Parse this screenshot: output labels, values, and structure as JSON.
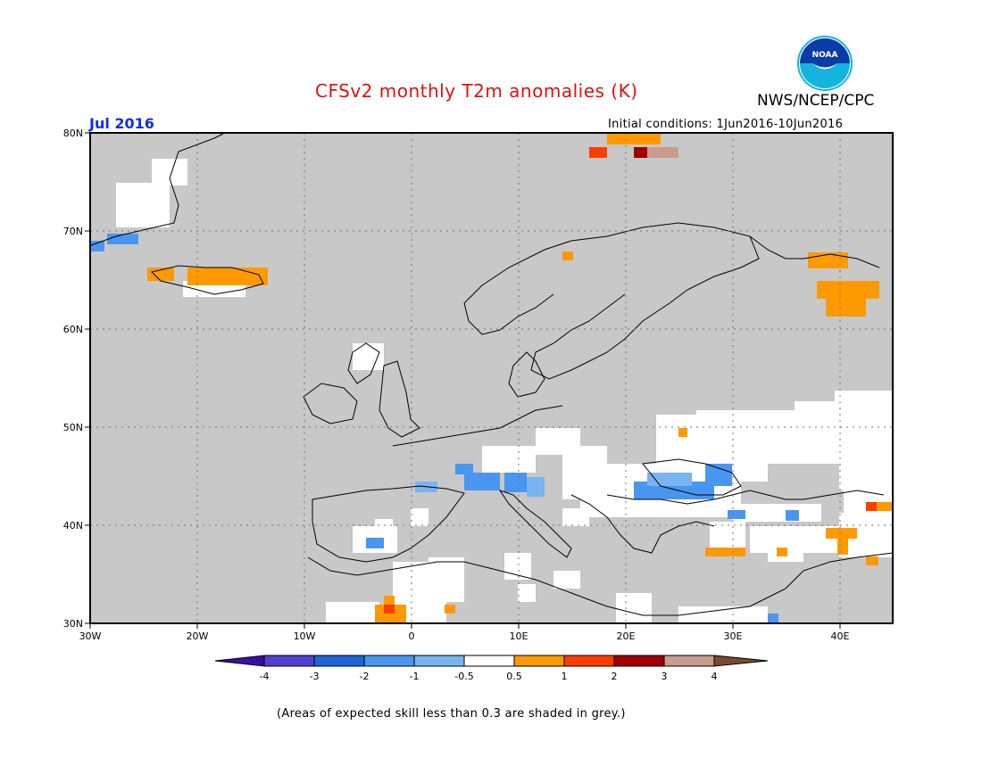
{
  "title": "CFSv2 monthly T2m anomalies (K)",
  "agency": "NWS/NCEP/CPC",
  "logo_text": "NOAA",
  "forecast_month": "Jul 2016",
  "initial_conditions": "Initial conditions: 1Jun2016-10Jun2016",
  "map": {
    "lat_labels": [
      "80N",
      "70N",
      "60N",
      "50N",
      "40N",
      "30N"
    ],
    "lon_labels": [
      "30W",
      "20W",
      "10W",
      "0",
      "10E",
      "20E",
      "30E",
      "40E"
    ],
    "grid": "dotted",
    "skill_mask_color": "#c8c8c8"
  },
  "colorbar": {
    "colors": [
      "#3a0fa0",
      "#5040d0",
      "#1f64d8",
      "#4896f0",
      "#78b4f0",
      "#ffffff",
      "#ff9900",
      "#ff3c00",
      "#a00000",
      "#c89b8c",
      "#7a4a32"
    ],
    "ticks": [
      "-4",
      "-3",
      "-2",
      "-1",
      "-0.5",
      "0.5",
      "1",
      "2",
      "3",
      "4"
    ]
  },
  "footnote": "(Areas of expected skill less than 0.3 are shaded in grey.)"
}
